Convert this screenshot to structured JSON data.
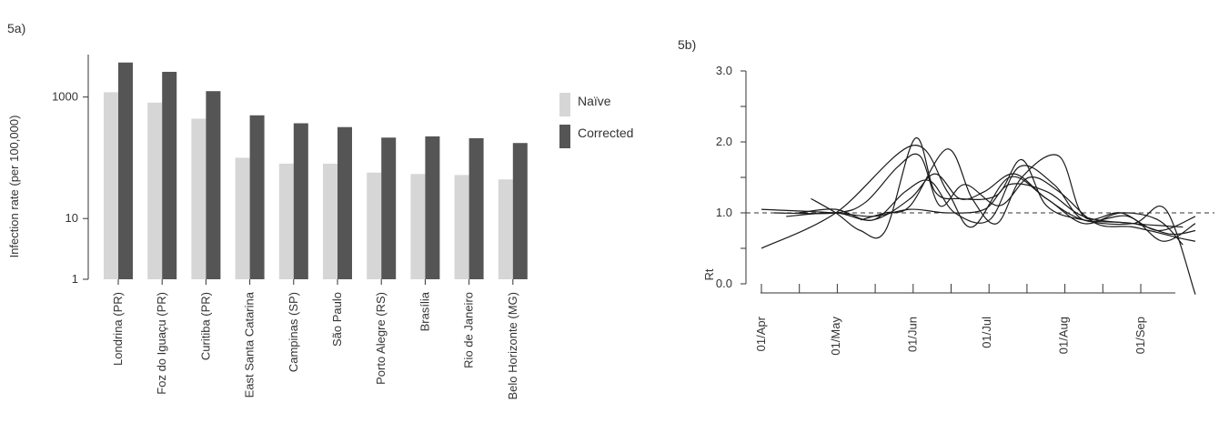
{
  "chart_data": [
    {
      "panel_label": "5a)",
      "type": "bar",
      "ylabel": "Infection rate (per 100,000)",
      "yscale": "log",
      "ylim": [
        1,
        5000
      ],
      "yticks": [
        1,
        10,
        1000
      ],
      "ytick_labels": [
        "1",
        "10",
        "1000"
      ],
      "legend_position": "right",
      "categories": [
        "Londrina (PR)",
        "Foz do Iguaçu (PR)",
        "Curitiba (PR)",
        "East Santa Catarina",
        "Campinas (SP)",
        "São Paulo",
        "Porto Alegre (RS)",
        "Brasília",
        "Rio de Janeiro",
        "Belo Horizonte (MG)"
      ],
      "series": [
        {
          "name": "Naïve",
          "color": "#d6d6d6",
          "values": [
            1200,
            810,
            440,
            100,
            80,
            80,
            57,
            54,
            52,
            44
          ]
        },
        {
          "name": "Corrected",
          "color": "#555555",
          "values": [
            3700,
            2600,
            1250,
            500,
            370,
            320,
            215,
            225,
            210,
            175
          ]
        }
      ]
    },
    {
      "panel_label": "5b)",
      "type": "line",
      "ylabel": "Rt",
      "ylim": [
        0,
        3
      ],
      "yticks": [
        0,
        1,
        2,
        3
      ],
      "ytick_labels": [
        "0.0",
        "1.0",
        "2.0",
        "3.0"
      ],
      "x_tick_labels": [
        "01/Apr",
        "01/May",
        "01/Jun",
        "01/Jul",
        "01/Aug",
        "01/Sep"
      ],
      "x_tick_days": [
        0,
        30,
        61,
        91,
        122,
        153
      ],
      "reference_line": 1.0,
      "series": [
        {
          "points": [
            [
              0,
              0.5
            ],
            [
              30,
              1.0
            ],
            [
              61,
              1.95
            ],
            [
              75,
              1.3
            ],
            [
              85,
              0.8
            ],
            [
              100,
              1.5
            ],
            [
              115,
              1.2
            ],
            [
              130,
              0.85
            ],
            [
              145,
              1.0
            ],
            [
              160,
              0.9
            ],
            [
              170,
              0.55
            ]
          ]
        },
        {
          "points": [
            [
              0,
              1.05
            ],
            [
              30,
              1.0
            ],
            [
              45,
              0.95
            ],
            [
              60,
              1.05
            ],
            [
              75,
              1.0
            ],
            [
              90,
              1.05
            ],
            [
              100,
              1.4
            ],
            [
              115,
              1.3
            ],
            [
              130,
              0.95
            ],
            [
              150,
              0.85
            ],
            [
              170,
              0.8
            ]
          ]
        },
        {
          "points": [
            [
              20,
              1.2
            ],
            [
              30,
              1.0
            ],
            [
              40,
              0.75
            ],
            [
              50,
              0.75
            ],
            [
              62,
              2.05
            ],
            [
              70,
              1.3
            ],
            [
              80,
              1.2
            ],
            [
              95,
              1.25
            ],
            [
              105,
              1.75
            ],
            [
              115,
              1.1
            ],
            [
              130,
              0.9
            ],
            [
              150,
              0.85
            ],
            [
              165,
              0.7
            ],
            [
              175,
              0.75
            ]
          ]
        },
        {
          "points": [
            [
              10,
              0.95
            ],
            [
              30,
              1.0
            ],
            [
              45,
              0.9
            ],
            [
              60,
              1.2
            ],
            [
              70,
              1.55
            ],
            [
              80,
              1.2
            ],
            [
              90,
              1.3
            ],
            [
              102,
              1.55
            ],
            [
              115,
              1.2
            ],
            [
              130,
              0.9
            ],
            [
              150,
              0.85
            ],
            [
              163,
              1.05
            ],
            [
              175,
              -0.15
            ]
          ]
        },
        {
          "points": [
            [
              40,
              0.9
            ],
            [
              50,
              1.0
            ],
            [
              60,
              1.1
            ],
            [
              75,
              1.9
            ],
            [
              85,
              1.2
            ],
            [
              95,
              0.85
            ],
            [
              105,
              1.5
            ],
            [
              120,
              1.8
            ],
            [
              130,
              0.95
            ],
            [
              145,
              1.0
            ],
            [
              160,
              0.75
            ],
            [
              175,
              0.95
            ]
          ]
        },
        {
          "points": [
            [
              15,
              1.0
            ],
            [
              30,
              1.05
            ],
            [
              45,
              0.9
            ],
            [
              58,
              1.3
            ],
            [
              68,
              1.45
            ],
            [
              78,
              1.0
            ],
            [
              92,
              0.9
            ],
            [
              104,
              1.65
            ],
            [
              118,
              1.4
            ],
            [
              130,
              0.9
            ],
            [
              148,
              0.95
            ],
            [
              162,
              0.6
            ],
            [
              175,
              0.85
            ]
          ]
        },
        {
          "points": [
            [
              5,
              1.0
            ],
            [
              30,
              1.0
            ],
            [
              42,
              1.15
            ],
            [
              55,
              1.65
            ],
            [
              64,
              1.8
            ],
            [
              72,
              1.1
            ],
            [
              82,
              1.4
            ],
            [
              96,
              1.1
            ],
            [
              108,
              1.5
            ],
            [
              120,
              1.3
            ],
            [
              135,
              0.85
            ],
            [
              150,
              0.8
            ],
            [
              168,
              0.65
            ],
            [
              175,
              0.6
            ]
          ]
        }
      ]
    }
  ]
}
